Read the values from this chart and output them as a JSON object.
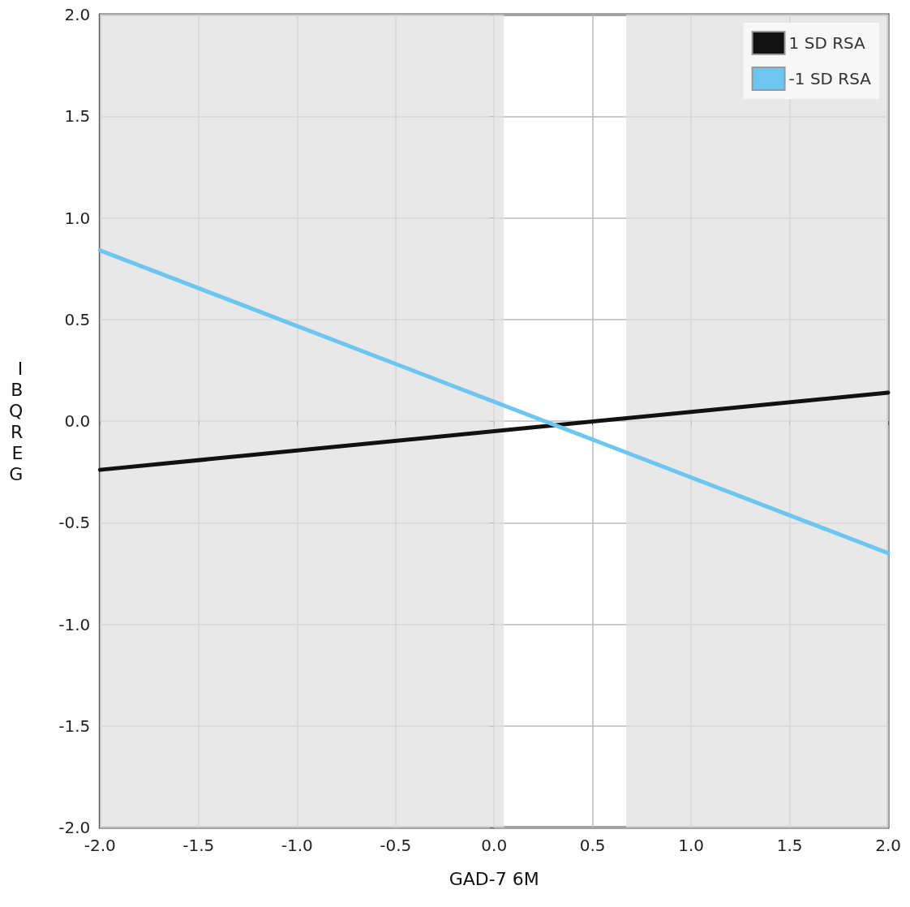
{
  "chart_data": {
    "type": "line",
    "xlabel": "GAD-7 6M",
    "ylabel": "IBQREG",
    "x": [
      -2,
      2
    ],
    "series": [
      {
        "name": "1 SD RSA",
        "color": "#111111",
        "values": [
          -0.24,
          0.14
        ]
      },
      {
        "name": "-1 SD RSA",
        "color": "#6cc6f0",
        "values": [
          0.84,
          -0.65
        ]
      }
    ],
    "bands": [
      {
        "axis": "x",
        "from": -2,
        "to": 0.05,
        "color": "#e0e0e0"
      },
      {
        "axis": "x",
        "from": 0.67,
        "to": 2,
        "color": "#e0e0e0"
      }
    ],
    "xlim": [
      -2,
      2
    ],
    "xticks": [
      {
        "value": -2,
        "label": "-2.0"
      },
      {
        "value": -1.5,
        "label": "-1.5"
      },
      {
        "value": -1,
        "label": "-1.0"
      },
      {
        "value": -0.5,
        "label": "-0.5"
      },
      {
        "value": 0,
        "label": "0.0"
      },
      {
        "value": 0.5,
        "label": "0.5"
      },
      {
        "value": 1,
        "label": "1.0"
      },
      {
        "value": 1.5,
        "label": "1.5"
      },
      {
        "value": 2,
        "label": "2.0"
      }
    ],
    "ylim": [
      -2,
      2
    ],
    "yticks": [
      {
        "value": -2,
        "label": "-2.0"
      },
      {
        "value": -1.5,
        "label": "-1.5"
      },
      {
        "value": -1,
        "label": "-1.0"
      },
      {
        "value": -0.5,
        "label": "-0.5"
      },
      {
        "value": 0,
        "label": "0.0"
      },
      {
        "value": 0.5,
        "label": "0.5"
      },
      {
        "value": 1,
        "label": "1.0"
      },
      {
        "value": 1.5,
        "label": "1.5"
      },
      {
        "value": 2,
        "label": "2.0"
      }
    ],
    "grid": true,
    "legend": "top right",
    "marker": "none",
    "line_style": "solid"
  }
}
